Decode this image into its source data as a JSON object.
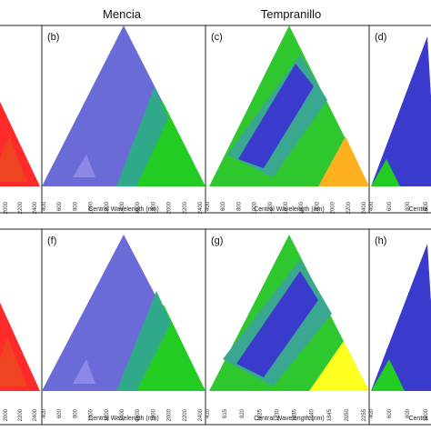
{
  "column_titles": [
    "Mencia",
    "Tempranillo"
  ],
  "chart_data": [
    {
      "panel": "(b)",
      "type": "heatmap",
      "xlabel": "Central Wavelength (nm)",
      "x_ticks": [
        "400",
        "600",
        "800",
        "1000",
        "1200",
        "1400",
        "1600",
        "1800",
        "2000",
        "2200",
        "2400"
      ],
      "dominant_colors": [
        "#6b6bd8",
        "#2fa98a",
        "#22cc22"
      ]
    },
    {
      "panel": "(c)",
      "type": "heatmap",
      "xlabel": "Central Wavelength (nm)",
      "x_ticks": [
        "400",
        "600",
        "800",
        "1000",
        "1200",
        "1400",
        "1600",
        "1800",
        "2000",
        "2200",
        "2400"
      ],
      "dominant_colors": [
        "#3a3acc",
        "#3aa890",
        "#2ec82e",
        "#ffb020"
      ]
    },
    {
      "panel": "(d)",
      "type": "heatmap",
      "xlabel": "Centra",
      "x_ticks": [
        "400",
        "600",
        "800",
        "1000"
      ],
      "dominant_colors": [
        "#3a3acc",
        "#22cc22"
      ]
    },
    {
      "panel": "(f)",
      "type": "heatmap",
      "xlabel": "Central Wavelength (nm)",
      "x_ticks": [
        "400",
        "600",
        "800",
        "1000",
        "1200",
        "1400",
        "1600",
        "1800",
        "2000",
        "2200",
        "2400"
      ],
      "dominant_colors": [
        "#6b6bd8",
        "#2fa98a",
        "#22cc22"
      ]
    },
    {
      "panel": "(g)",
      "type": "heatmap",
      "xlabel": "Central Wavelength (nm)",
      "x_ticks": [
        "410",
        "615",
        "820",
        "1025",
        "1230",
        "1435",
        "1640",
        "1845",
        "2050",
        "2255"
      ],
      "dominant_colors": [
        "#3a3acc",
        "#3aa890",
        "#2ec82e",
        "#ffff20"
      ]
    },
    {
      "panel": "(h)",
      "type": "heatmap",
      "xlabel": "Centra",
      "x_ticks": [
        "400",
        "600",
        "800",
        "1000"
      ],
      "dominant_colors": [
        "#3a3acc",
        "#22cc22"
      ]
    }
  ],
  "partial_panels": {
    "top_left_ticks": [
      "2000",
      "2200",
      "2400"
    ],
    "bottom_left_ticks": [
      "2000",
      "2200",
      "2400"
    ],
    "colors": [
      "#ff2a2a",
      "#e85020"
    ]
  }
}
